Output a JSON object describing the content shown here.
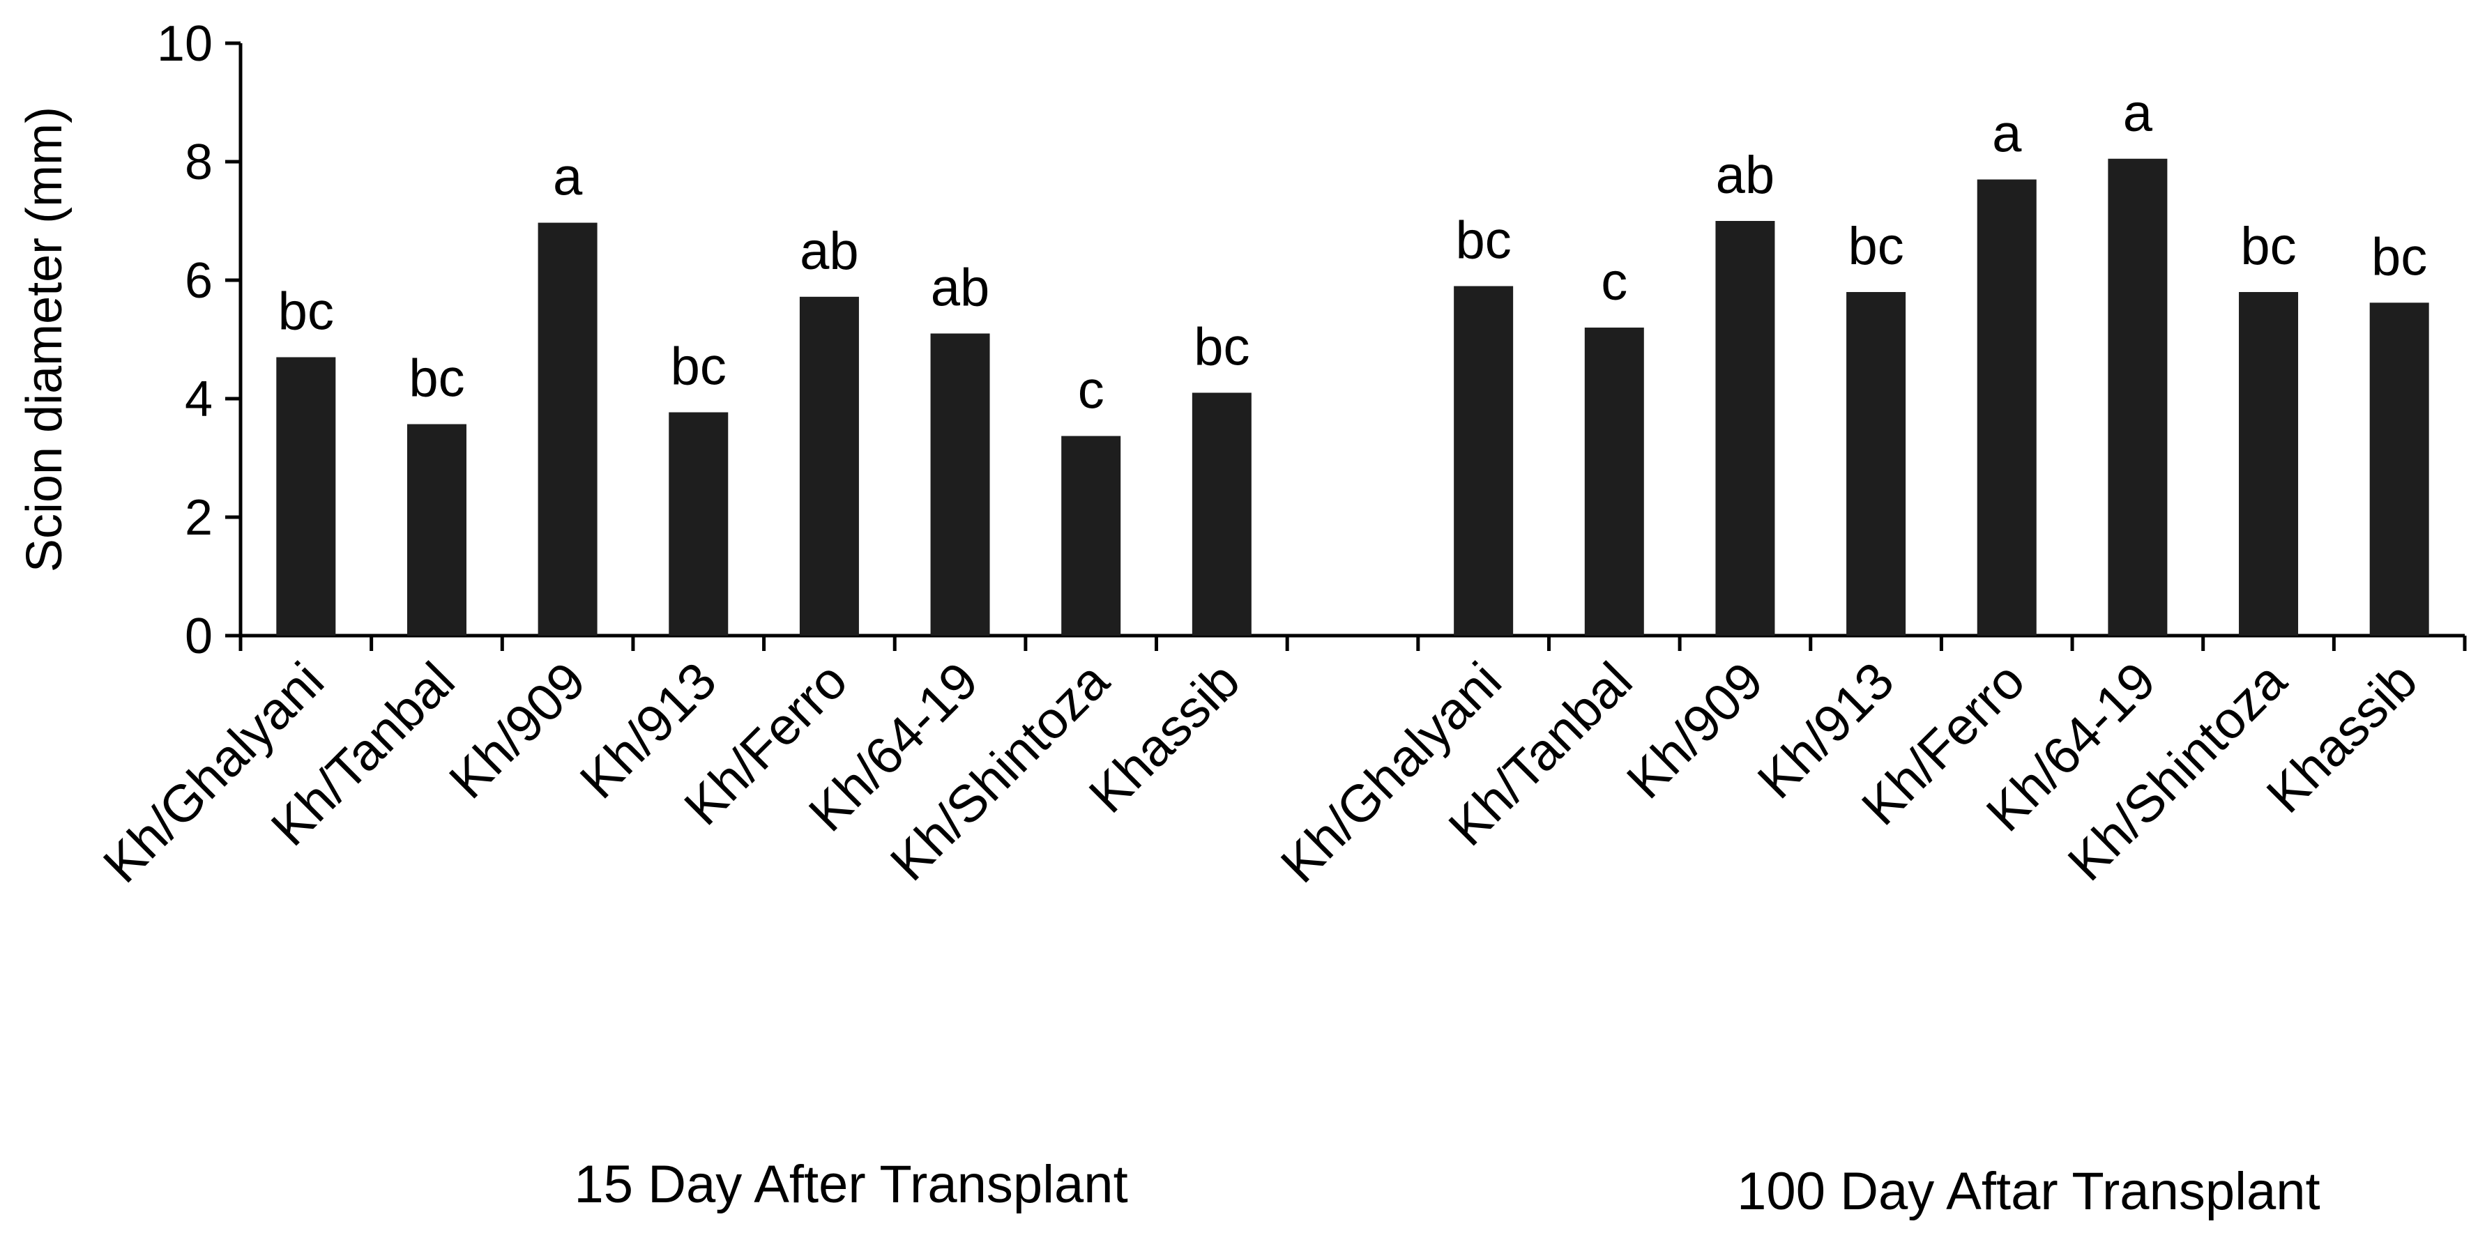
{
  "chart_data": {
    "type": "bar",
    "ylabel": "Scion diameter (mm)",
    "ylim": [
      0,
      10
    ],
    "yticks": [
      "0",
      "2",
      "4",
      "6",
      "8",
      "10"
    ],
    "bar_color": "#1e1e1e",
    "groups": [
      {
        "label": "15 Day After Transplant",
        "categories": [
          "Kh/Ghalyani",
          "Kh/Tanbal",
          "Kh/909",
          "Kh/913",
          "Kh/Ferro",
          "Kh/64-19",
          "Kh/Shintoza",
          "Khassib"
        ],
        "values": [
          4.7,
          3.57,
          6.97,
          3.77,
          5.72,
          5.1,
          3.37,
          4.1
        ],
        "letters": [
          "bc",
          "bc",
          "a",
          "bc",
          "ab",
          "ab",
          "c",
          "bc"
        ]
      },
      {
        "label": "100 Day Aftar Transplant",
        "categories": [
          "Kh/Ghalyani",
          "Kh/Tanbal",
          "Kh/909",
          "Kh/913",
          "Kh/Ferro",
          "Kh/64-19",
          "Kh/Shintoza",
          "Khassib"
        ],
        "values": [
          5.9,
          5.2,
          7.0,
          5.8,
          7.7,
          8.05,
          5.8,
          5.62
        ],
        "letters": [
          "bc",
          "c",
          "ab",
          "bc",
          "a",
          "a",
          "bc",
          "bc"
        ]
      }
    ]
  }
}
